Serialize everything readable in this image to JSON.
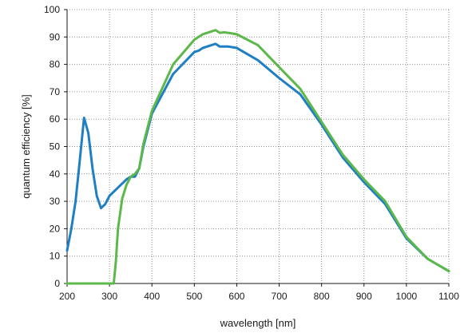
{
  "chart_data": {
    "type": "line",
    "title": "",
    "xlabel": "wavelength [nm]",
    "ylabel": "quantum efficiency [%]",
    "xlim": [
      200,
      1100
    ],
    "ylim": [
      0,
      100
    ],
    "x_ticks": [
      200,
      300,
      400,
      500,
      600,
      700,
      800,
      900,
      1000,
      1100
    ],
    "y_ticks": [
      0,
      10,
      20,
      30,
      40,
      50,
      60,
      70,
      80,
      90,
      100
    ],
    "grid": true,
    "legend": "none",
    "series": [
      {
        "color": "#1f7fc4",
        "points": [
          [
            200,
            12
          ],
          [
            210,
            20
          ],
          [
            220,
            30
          ],
          [
            230,
            45
          ],
          [
            240,
            60.5
          ],
          [
            250,
            55
          ],
          [
            260,
            42
          ],
          [
            270,
            32
          ],
          [
            280,
            27.5
          ],
          [
            290,
            29
          ],
          [
            300,
            32
          ],
          [
            320,
            35
          ],
          [
            340,
            38
          ],
          [
            350,
            39
          ],
          [
            360,
            39
          ],
          [
            370,
            42
          ],
          [
            380,
            50
          ],
          [
            400,
            62
          ],
          [
            450,
            76.5
          ],
          [
            500,
            84.5
          ],
          [
            510,
            85
          ],
          [
            520,
            86
          ],
          [
            530,
            86.5
          ],
          [
            540,
            87
          ],
          [
            550,
            87.5
          ],
          [
            560,
            86.5
          ],
          [
            570,
            86.5
          ],
          [
            580,
            86.5
          ],
          [
            600,
            86
          ],
          [
            650,
            81.5
          ],
          [
            700,
            75
          ],
          [
            750,
            69
          ],
          [
            800,
            58
          ],
          [
            850,
            46
          ],
          [
            900,
            37
          ],
          [
            950,
            29
          ],
          [
            1000,
            16.5
          ],
          [
            1050,
            9
          ],
          [
            1100,
            4.5
          ]
        ]
      },
      {
        "color": "#5cb84a",
        "points": [
          [
            200,
            0
          ],
          [
            300,
            0
          ],
          [
            310,
            0
          ],
          [
            315,
            8
          ],
          [
            320,
            20
          ],
          [
            330,
            31
          ],
          [
            340,
            36
          ],
          [
            350,
            39
          ],
          [
            360,
            40
          ],
          [
            370,
            42
          ],
          [
            380,
            51
          ],
          [
            400,
            63
          ],
          [
            450,
            80
          ],
          [
            500,
            89
          ],
          [
            510,
            90
          ],
          [
            520,
            91
          ],
          [
            530,
            91.5
          ],
          [
            540,
            92
          ],
          [
            550,
            92.5
          ],
          [
            560,
            91.5
          ],
          [
            570,
            91.7
          ],
          [
            580,
            91.5
          ],
          [
            600,
            91
          ],
          [
            650,
            87
          ],
          [
            700,
            79
          ],
          [
            750,
            71
          ],
          [
            800,
            59
          ],
          [
            850,
            47
          ],
          [
            900,
            38
          ],
          [
            950,
            30
          ],
          [
            1000,
            17
          ],
          [
            1050,
            9
          ],
          [
            1100,
            4.5
          ]
        ]
      }
    ]
  }
}
